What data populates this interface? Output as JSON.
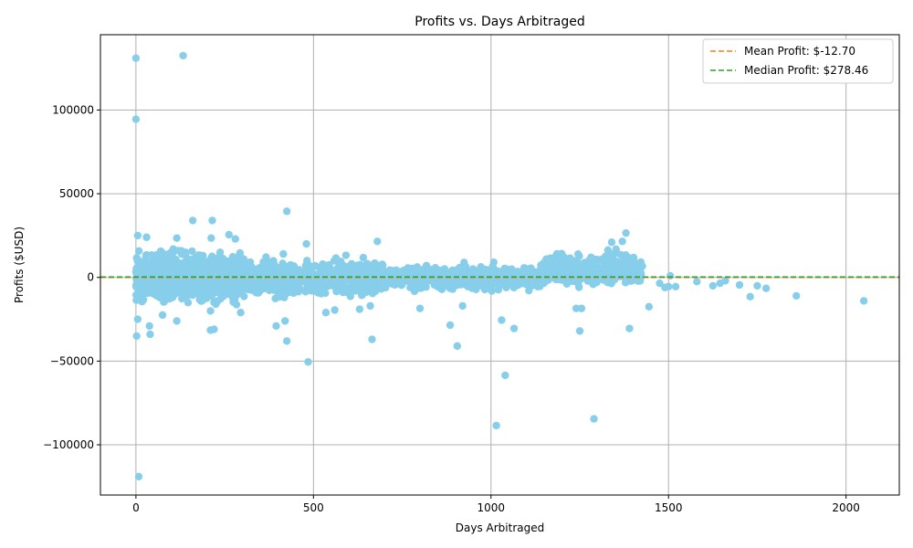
{
  "chart_data": {
    "type": "scatter",
    "title": "Profits vs. Days Arbitraged",
    "xlabel": "Days Arbitraged",
    "ylabel": "Profits ($USD)",
    "xlim": [
      -100,
      2150
    ],
    "ylim": [
      -130000,
      145000
    ],
    "xticks": [
      0,
      500,
      1000,
      1500,
      2000
    ],
    "xtick_labels": [
      "0",
      "500",
      "1000",
      "1500",
      "2000"
    ],
    "yticks": [
      -100000,
      -50000,
      0,
      50000,
      100000
    ],
    "ytick_labels": [
      "−100000",
      "−50000",
      "0",
      "50000",
      "100000"
    ],
    "grid": true,
    "legend_position": "top-right",
    "point_color": "#87ceeb",
    "dense_band": {
      "note": "approximate dense cloud of points",
      "segments": [
        {
          "x": [
            0,
            300
          ],
          "y": [
            -20000,
            20000
          ],
          "count": 900
        },
        {
          "x": [
            300,
            700
          ],
          "y": [
            -15000,
            15000
          ],
          "count": 600
        },
        {
          "x": [
            700,
            1150
          ],
          "y": [
            -10000,
            10000
          ],
          "count": 500
        },
        {
          "x": [
            1150,
            1430
          ],
          "y": [
            -8000,
            18000
          ],
          "count": 350
        }
      ]
    },
    "notable_points": [
      {
        "x": 0,
        "y": 131000
      },
      {
        "x": 133,
        "y": 132500
      },
      {
        "x": 0,
        "y": 94500
      },
      {
        "x": 160,
        "y": 34000
      },
      {
        "x": 215,
        "y": 34000
      },
      {
        "x": 425,
        "y": 39500
      },
      {
        "x": 262,
        "y": 25500
      },
      {
        "x": 280,
        "y": 23000
      },
      {
        "x": 212,
        "y": 23500
      },
      {
        "x": 115,
        "y": 23500
      },
      {
        "x": 30,
        "y": 24000
      },
      {
        "x": 5,
        "y": 25000
      },
      {
        "x": 480,
        "y": 20000
      },
      {
        "x": 680,
        "y": 21500
      },
      {
        "x": 1380,
        "y": 26500
      },
      {
        "x": 1370,
        "y": 21500
      },
      {
        "x": 1340,
        "y": 21000
      },
      {
        "x": 5,
        "y": -25000
      },
      {
        "x": 2,
        "y": -35000
      },
      {
        "x": 40,
        "y": -34000
      },
      {
        "x": 38,
        "y": -29000
      },
      {
        "x": 115,
        "y": -26000
      },
      {
        "x": 210,
        "y": -31500
      },
      {
        "x": 220,
        "y": -31000
      },
      {
        "x": 395,
        "y": -29000
      },
      {
        "x": 420,
        "y": -26000
      },
      {
        "x": 425,
        "y": -38000
      },
      {
        "x": 485,
        "y": -50500
      },
      {
        "x": 535,
        "y": -21000
      },
      {
        "x": 665,
        "y": -37000
      },
      {
        "x": 885,
        "y": -28500
      },
      {
        "x": 905,
        "y": -41000
      },
      {
        "x": 1030,
        "y": -25500
      },
      {
        "x": 1065,
        "y": -30500
      },
      {
        "x": 1250,
        "y": -32000
      },
      {
        "x": 1390,
        "y": -30500
      },
      {
        "x": 1040,
        "y": -58500
      },
      {
        "x": 1015,
        "y": -88500
      },
      {
        "x": 1290,
        "y": -84500
      },
      {
        "x": 8,
        "y": -119000
      },
      {
        "x": 1475,
        "y": -3500
      },
      {
        "x": 1490,
        "y": -6000
      },
      {
        "x": 1500,
        "y": -5500
      },
      {
        "x": 1505,
        "y": 1000
      },
      {
        "x": 1520,
        "y": -5500
      },
      {
        "x": 1580,
        "y": -2500
      },
      {
        "x": 1625,
        "y": -5000
      },
      {
        "x": 1645,
        "y": -3500
      },
      {
        "x": 1660,
        "y": -2000
      },
      {
        "x": 1700,
        "y": -4500
      },
      {
        "x": 1730,
        "y": -11500
      },
      {
        "x": 1750,
        "y": -5000
      },
      {
        "x": 1775,
        "y": -6500
      },
      {
        "x": 1860,
        "y": -11000
      },
      {
        "x": 2050,
        "y": -14000
      },
      {
        "x": 1445,
        "y": -17500
      },
      {
        "x": 1240,
        "y": -18500
      },
      {
        "x": 1255,
        "y": -18500
      },
      {
        "x": 800,
        "y": -18500
      },
      {
        "x": 920,
        "y": -17000
      },
      {
        "x": 660,
        "y": -17000
      },
      {
        "x": 630,
        "y": -19000
      },
      {
        "x": 560,
        "y": -19500
      },
      {
        "x": 210,
        "y": -20000
      },
      {
        "x": 295,
        "y": -21000
      },
      {
        "x": 75,
        "y": -22500
      }
    ],
    "lines": [
      {
        "name": "Mean Profit: $-12.70",
        "y": -12.7,
        "color": "#ff7f0e",
        "style": "dashed"
      },
      {
        "name": "Median Profit: $278.46",
        "y": 278.46,
        "color": "#2ca02c",
        "style": "dashed"
      }
    ]
  }
}
